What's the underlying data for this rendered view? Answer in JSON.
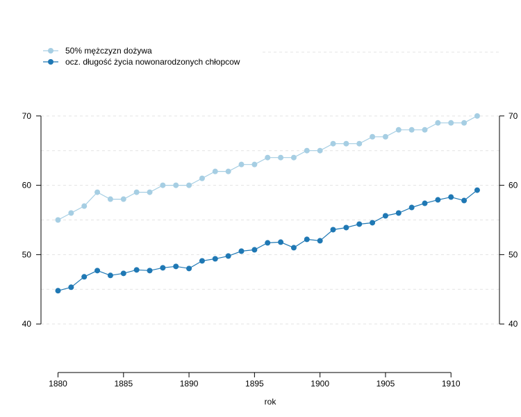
{
  "chart_data": {
    "type": "line",
    "title": "",
    "xlabel": "rok",
    "ylabel": "",
    "x": [
      1880,
      1881,
      1882,
      1883,
      1884,
      1885,
      1886,
      1887,
      1888,
      1889,
      1890,
      1891,
      1892,
      1893,
      1894,
      1895,
      1896,
      1897,
      1898,
      1899,
      1900,
      1901,
      1902,
      1903,
      1904,
      1905,
      1906,
      1907,
      1908,
      1909,
      1910,
      1911,
      1912
    ],
    "xlim": [
      1878.7,
      1913.7
    ],
    "ylim": [
      33,
      78
    ],
    "x_ticks": [
      "1880",
      "1885",
      "1890",
      "1895",
      "1900",
      "1905",
      "1910"
    ],
    "x_tick_values": [
      1880,
      1885,
      1890,
      1895,
      1900,
      1905,
      1910
    ],
    "y_ticks_left": [
      "40",
      "50",
      "60",
      "70"
    ],
    "y_ticks_right": [
      "40",
      "50",
      "60",
      "70"
    ],
    "y_tick_values": [
      40,
      50,
      60,
      70
    ],
    "y_grid_values": [
      40,
      45,
      50,
      55,
      60,
      65,
      70
    ],
    "grid": true,
    "legend_position": "top-left",
    "series": [
      {
        "name": "50% mężczyzn dożywa",
        "color": "#a6cee3",
        "values": [
          55,
          56,
          57,
          59,
          58,
          58,
          59,
          59,
          60,
          60,
          60,
          61,
          62,
          62,
          63,
          63,
          64,
          64,
          64,
          65,
          65,
          66,
          66,
          66,
          67,
          67,
          68,
          68,
          68,
          69,
          69,
          69,
          70
        ]
      },
      {
        "name": "ocz. długość życia nowonarodzonych chłopcow",
        "color": "#1f78b4",
        "values": [
          44.8,
          45.3,
          46.8,
          47.7,
          47.0,
          47.3,
          47.8,
          47.7,
          48.1,
          48.3,
          48.0,
          49.1,
          49.4,
          49.8,
          50.5,
          50.7,
          51.7,
          51.8,
          51.0,
          52.2,
          52.0,
          53.6,
          53.9,
          54.4,
          54.6,
          55.6,
          56.0,
          56.8,
          57.4,
          57.9,
          58.3,
          57.8,
          59.3
        ]
      }
    ]
  }
}
